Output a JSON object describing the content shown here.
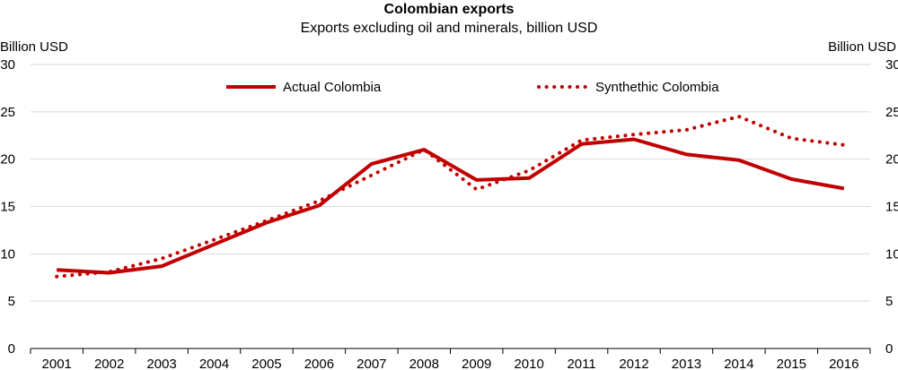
{
  "chart_data": {
    "type": "line",
    "title": "Colombian exports",
    "subtitle": "Exports excluding oil and minerals, billion USD",
    "ylabel_left": "Billion USD",
    "ylabel_right": "Billion USD",
    "ylim": [
      0,
      30
    ],
    "yticks": [
      0,
      5,
      10,
      15,
      20,
      25,
      30
    ],
    "grid": true,
    "legend_position": "top",
    "categories": [
      "2001",
      "2002",
      "2003",
      "2004",
      "2005",
      "2006",
      "2007",
      "2008",
      "2009",
      "2010",
      "2011",
      "2012",
      "2013",
      "2014",
      "2015",
      "2016"
    ],
    "series": [
      {
        "name": "Actual Colombia",
        "style": "solid",
        "color": "#C00000",
        "values": [
          8.3,
          8.0,
          8.7,
          11.0,
          13.3,
          15.1,
          19.5,
          21.0,
          17.8,
          18.0,
          21.6,
          22.1,
          20.5,
          19.9,
          17.9,
          16.9
        ]
      },
      {
        "name": "Synthethic Colombia",
        "style": "dotted",
        "color": "#C00000",
        "values": [
          7.6,
          8.1,
          9.5,
          11.5,
          13.5,
          15.6,
          18.3,
          21.0,
          16.8,
          18.8,
          22.0,
          22.6,
          23.1,
          24.5,
          22.2,
          21.5
        ]
      }
    ]
  }
}
